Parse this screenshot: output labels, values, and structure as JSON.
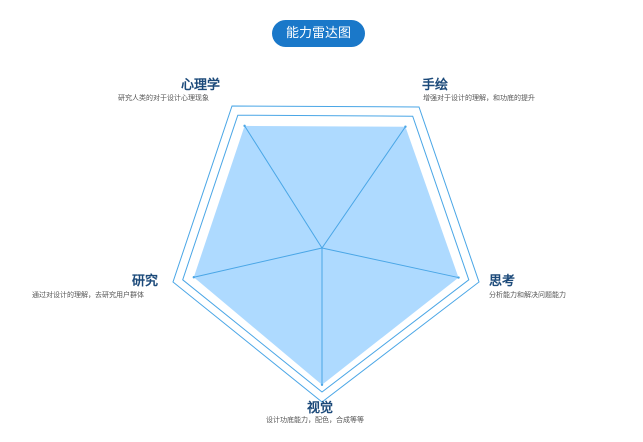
{
  "title": "能力雷达图",
  "colors": {
    "accent": "#1a78c9",
    "fill": "#aedaff",
    "outline": "#4aa6e6"
  },
  "chart_data": {
    "type": "radar",
    "title": "能力雷达图",
    "axes": [
      {
        "name": "心理学",
        "description": "研究人类的对于设计心理现象"
      },
      {
        "name": "手绘",
        "description": "增强对于设计的理解，和功底的提升"
      },
      {
        "name": "思考",
        "description": "分析能力和解决问题能力"
      },
      {
        "name": "视觉",
        "description": "设计功底能力，配色，合成等等"
      },
      {
        "name": "研究",
        "description": "通过对设计的理解，去研究用户群体"
      }
    ],
    "values": [
      0.92,
      0.92,
      0.93,
      0.95,
      0.92
    ],
    "max": 1
  }
}
